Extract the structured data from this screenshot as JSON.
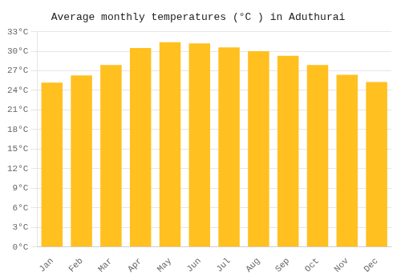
{
  "chart_data": {
    "type": "bar",
    "title": "Average monthly temperatures (°C ) in Aduthurai",
    "categories": [
      "Jan",
      "Feb",
      "Mar",
      "Apr",
      "May",
      "Jun",
      "Jul",
      "Aug",
      "Sep",
      "Oct",
      "Nov",
      "Dec"
    ],
    "values": [
      25.2,
      26.3,
      27.9,
      30.5,
      31.4,
      31.2,
      30.6,
      30.0,
      29.3,
      27.9,
      26.4,
      25.3
    ],
    "color": "#FFC020",
    "ylim": [
      0,
      33
    ],
    "yticks": [
      {
        "value": 0,
        "label": "0°C"
      },
      {
        "value": 3,
        "label": "3°C"
      },
      {
        "value": 6,
        "label": "6°C"
      },
      {
        "value": 9,
        "label": "9°C"
      },
      {
        "value": 12,
        "label": "12°C"
      },
      {
        "value": 15,
        "label": "15°C"
      },
      {
        "value": 18,
        "label": "18°C"
      },
      {
        "value": 21,
        "label": "21°C"
      },
      {
        "value": 24,
        "label": "24°C"
      },
      {
        "value": 27,
        "label": "27°C"
      },
      {
        "value": 30,
        "label": "30°C"
      },
      {
        "value": 33,
        "label": "33°C"
      }
    ],
    "grid": true
  }
}
